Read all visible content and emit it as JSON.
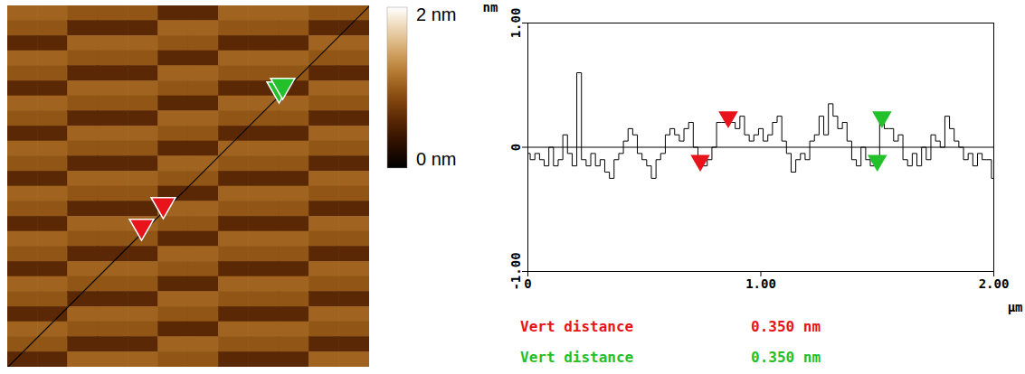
{
  "chart_data": [
    {
      "type": "heatmap",
      "tick_labels": false,
      "cells": [
        [
          1.05,
          1.05,
          0.95,
          0.95,
          0.95,
          0.6,
          0.6,
          1.05,
          1.05,
          1.05,
          0.95,
          0.95
        ],
        [
          0.95,
          0.95,
          0.6,
          0.6,
          0.6,
          1.05,
          1.05,
          0.95,
          0.95,
          0.95,
          0.6,
          0.6
        ],
        [
          0.6,
          0.6,
          1.05,
          1.05,
          1.05,
          0.95,
          0.95,
          0.6,
          0.6,
          0.6,
          1.05,
          1.05
        ],
        [
          1.05,
          1.05,
          0.95,
          0.95,
          0.95,
          0.6,
          0.6,
          1.05,
          1.05,
          1.05,
          0.95,
          0.95
        ],
        [
          0.95,
          0.95,
          0.6,
          0.6,
          0.6,
          1.05,
          1.05,
          0.95,
          0.95,
          0.95,
          0.6,
          0.6
        ],
        [
          0.6,
          0.6,
          1.05,
          1.05,
          1.05,
          0.95,
          0.95,
          0.6,
          0.6,
          0.6,
          1.05,
          1.05
        ],
        [
          1.05,
          1.05,
          0.95,
          0.95,
          0.95,
          0.6,
          0.6,
          1.05,
          1.05,
          1.05,
          0.95,
          0.95
        ],
        [
          0.95,
          0.95,
          0.6,
          0.6,
          0.6,
          1.05,
          1.05,
          0.95,
          0.95,
          0.95,
          0.6,
          0.6
        ],
        [
          0.6,
          0.6,
          1.05,
          1.05,
          1.05,
          0.95,
          0.95,
          0.6,
          0.6,
          0.6,
          1.05,
          1.05
        ],
        [
          1.05,
          1.05,
          0.95,
          0.95,
          0.95,
          0.6,
          0.6,
          1.05,
          1.05,
          1.05,
          0.95,
          0.95
        ],
        [
          0.95,
          0.95,
          0.6,
          0.6,
          0.6,
          1.05,
          1.05,
          0.95,
          0.95,
          0.95,
          0.6,
          0.6
        ],
        [
          0.6,
          0.6,
          1.05,
          1.05,
          1.05,
          0.95,
          0.95,
          0.6,
          0.6,
          0.6,
          1.05,
          1.05
        ],
        [
          1.05,
          1.05,
          0.95,
          0.95,
          0.95,
          0.6,
          0.6,
          1.05,
          1.05,
          1.05,
          0.95,
          0.95
        ],
        [
          0.95,
          0.95,
          0.6,
          0.6,
          0.6,
          1.05,
          1.05,
          0.95,
          0.95,
          0.95,
          0.6,
          0.6
        ],
        [
          0.6,
          0.6,
          1.05,
          1.05,
          1.05,
          0.95,
          0.95,
          0.6,
          0.6,
          0.6,
          1.05,
          1.05
        ],
        [
          1.05,
          1.05,
          0.95,
          0.95,
          0.95,
          0.6,
          0.6,
          1.05,
          1.05,
          1.05,
          0.95,
          0.95
        ],
        [
          0.95,
          0.95,
          0.6,
          0.6,
          0.6,
          1.05,
          1.05,
          0.95,
          0.95,
          0.95,
          0.6,
          0.6
        ],
        [
          0.6,
          0.6,
          1.05,
          1.05,
          1.05,
          0.95,
          0.95,
          0.6,
          0.6,
          0.6,
          1.05,
          1.05
        ],
        [
          1.05,
          1.05,
          0.95,
          0.95,
          0.95,
          0.6,
          0.6,
          1.05,
          1.05,
          1.05,
          0.95,
          0.95
        ],
        [
          0.95,
          0.95,
          0.6,
          0.6,
          0.6,
          1.05,
          1.05,
          0.95,
          0.95,
          0.95,
          0.6,
          0.6
        ],
        [
          0.6,
          0.6,
          1.05,
          1.05,
          1.05,
          0.95,
          0.95,
          0.6,
          0.6,
          0.6,
          1.05,
          1.05
        ],
        [
          1.05,
          1.05,
          0.95,
          0.95,
          0.95,
          0.6,
          0.6,
          1.05,
          1.05,
          1.05,
          0.95,
          0.95
        ],
        [
          0.95,
          0.95,
          0.6,
          0.6,
          0.6,
          1.05,
          1.05,
          0.95,
          0.95,
          0.95,
          0.6,
          0.6
        ],
        [
          0.6,
          0.6,
          1.05,
          1.05,
          1.05,
          0.95,
          0.95,
          0.6,
          0.6,
          0.6,
          1.05,
          1.05
        ]
      ],
      "colorbar": {
        "range": [
          0,
          2
        ],
        "ticks": [
          {
            "value": 0,
            "label": "0 nm"
          },
          {
            "value": 2,
            "label": "2 nm"
          }
        ]
      }
    },
    {
      "type": "line",
      "color": "#000000",
      "x_label": "µm",
      "y_label": "nm",
      "xlim": [
        0,
        2
      ],
      "ylim": [
        -1,
        1
      ],
      "xticks": [
        0,
        {
          "value": 1,
          "label": "1.00"
        },
        {
          "value": 2,
          "label": "2.00"
        }
      ],
      "yticks": [
        {
          "value": -1,
          "label": "-1.00"
        },
        0,
        {
          "value": 1,
          "label": "1.00"
        }
      ],
      "x": [
        0,
        0.02,
        0.04,
        0.06,
        0.08,
        0.1,
        0.12,
        0.14,
        0.16,
        0.18,
        0.2,
        0.22,
        0.24,
        0.26,
        0.28,
        0.3,
        0.32,
        0.34,
        0.36,
        0.38,
        0.4,
        0.42,
        0.44,
        0.46,
        0.48,
        0.5,
        0.52,
        0.54,
        0.56,
        0.58,
        0.6,
        0.62,
        0.64,
        0.66,
        0.68,
        0.7,
        0.72,
        0.74,
        0.76,
        0.78,
        0.8,
        0.82,
        0.84,
        0.86,
        0.88,
        0.9,
        0.92,
        0.94,
        0.96,
        0.98,
        1,
        1.02,
        1.04,
        1.06,
        1.08,
        1.1,
        1.12,
        1.14,
        1.16,
        1.18,
        1.2,
        1.22,
        1.24,
        1.26,
        1.28,
        1.3,
        1.32,
        1.34,
        1.36,
        1.38,
        1.4,
        1.42,
        1.44,
        1.46,
        1.48,
        1.5,
        1.52,
        1.54,
        1.56,
        1.58,
        1.6,
        1.62,
        1.64,
        1.66,
        1.68,
        1.7,
        1.72,
        1.74,
        1.76,
        1.78,
        1.8,
        1.82,
        1.84,
        1.86,
        1.88,
        1.9,
        1.92,
        1.94,
        1.96,
        1.98,
        2
      ],
      "values": [
        -0.05,
        -0.1,
        -0.05,
        -0.1,
        -0.15,
        0,
        -0.15,
        -0.1,
        0.1,
        -0.05,
        -0.15,
        0.6,
        -0.1,
        -0.15,
        -0.05,
        -0.15,
        -0.1,
        -0.2,
        -0.25,
        -0.1,
        -0.05,
        0.05,
        0.15,
        0.1,
        -0.05,
        -0.1,
        -0.15,
        -0.25,
        -0.1,
        -0.05,
        0.1,
        0.15,
        0.1,
        0.05,
        0.15,
        0.2,
        0,
        -0.15,
        -0.15,
        -0.1,
        0,
        0.2,
        0.2,
        0.2,
        0.2,
        0.15,
        0.25,
        0.1,
        0.05,
        0.1,
        0.15,
        0.05,
        0.1,
        0.2,
        0.25,
        0.05,
        -0.05,
        -0.2,
        -0.1,
        -0.05,
        -0.1,
        0.05,
        0.1,
        0.25,
        0.1,
        0.35,
        0.25,
        0.15,
        0.2,
        0.05,
        -0.1,
        -0.15,
        0,
        -0.1,
        -0.15,
        -0.15,
        0.2,
        0.15,
        0.15,
        0.05,
        0.1,
        -0.1,
        -0.15,
        -0.05,
        -0.15,
        0,
        -0.1,
        0.1,
        0.05,
        0,
        0.25,
        0.15,
        0.05,
        0,
        -0.1,
        -0.05,
        -0.15,
        -0.05,
        -0.1,
        -0.1,
        -0.25
      ],
      "cursors": [
        {
          "color": "#e8141b",
          "points": [
            {
              "x": 0.74,
              "y": -0.15
            },
            {
              "x": 0.86,
              "y": 0.2
            }
          ]
        },
        {
          "color": "#22c02a",
          "points": [
            {
              "x": 1.5,
              "y": -0.15
            },
            {
              "x": 1.52,
              "y": 0.2
            }
          ]
        }
      ],
      "measurements": [
        {
          "label": "Vert distance",
          "value": 0.35,
          "value_label": "0.350 nm",
          "color": "#e8141b"
        },
        {
          "label": "Vert distance",
          "value": 0.35,
          "value_label": "0.350 nm",
          "color": "#22c02a"
        }
      ]
    }
  ]
}
